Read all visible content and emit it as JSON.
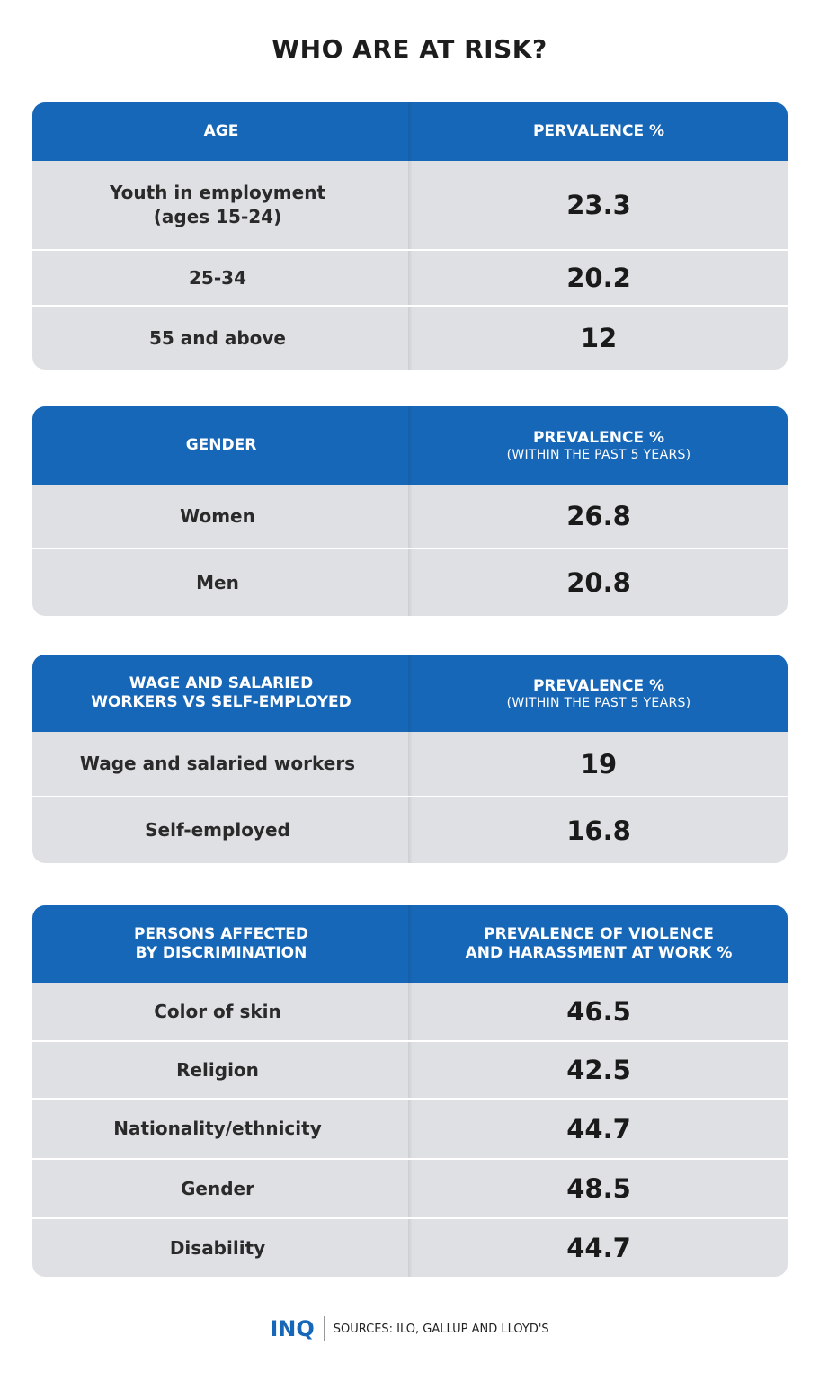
{
  "title": "WHO ARE AT RISK?",
  "tables": [
    {
      "header": [
        "AGE",
        "PERVALENCE %"
      ],
      "rows": [
        [
          "Youth in employment\n(ages 15-24)",
          "23.3"
        ],
        [
          "25-34",
          "20.2"
        ],
        [
          "55 and above",
          "12"
        ]
      ]
    },
    {
      "header": [
        "GENDER",
        "PREVALENCE %"
      ],
      "header_note": "(WITHIN THE PAST 5 YEARS)",
      "rows": [
        [
          "Women",
          "26.8"
        ],
        [
          "Men",
          "20.8"
        ]
      ]
    },
    {
      "header": [
        "WAGE AND SALARIED\nWORKERS VS SELF-EMPLOYED",
        "PREVALENCE %"
      ],
      "header_note": "(WITHIN THE PAST 5 YEARS)",
      "rows": [
        [
          "Wage and salaried workers",
          "19"
        ],
        [
          "Self-employed",
          "16.8"
        ]
      ]
    },
    {
      "header": [
        "PERSONS AFFECTED\nBY DISCRIMINATION",
        "PREVALENCE OF VIOLENCE\nAND HARASSMENT AT WORK %"
      ],
      "rows": [
        [
          "Color of skin",
          "46.5"
        ],
        [
          "Religion",
          "42.5"
        ],
        [
          "Nationality/ethnicity",
          "44.7"
        ],
        [
          "Gender",
          "48.5"
        ],
        [
          "Disability",
          "44.7"
        ]
      ]
    }
  ],
  "footer": {
    "logo": "INQ",
    "sources": "SOURCES: ILO, GALLUP AND LLOYD'S"
  }
}
